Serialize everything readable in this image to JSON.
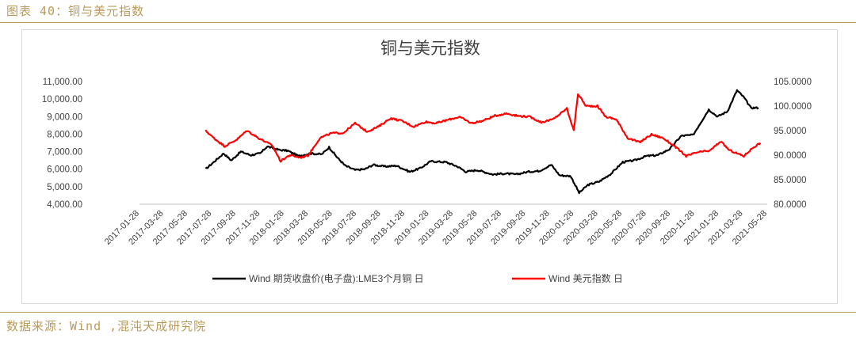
{
  "figure": {
    "caption": "图表 40：铜与美元指数",
    "source": "数据来源：Wind ,混沌天成研究院"
  },
  "chart_data": {
    "type": "line",
    "title": "铜与美元指数",
    "xlabel": "",
    "ylabel": "",
    "x_ticks": [
      "2017-01-28",
      "2017-03-28",
      "2017-05-28",
      "2017-07-28",
      "2017-09-28",
      "2017-11-28",
      "2018-01-28",
      "2018-03-28",
      "2018-05-28",
      "2018-07-28",
      "2018-09-28",
      "2018-11-28",
      "2019-01-28",
      "2019-03-28",
      "2019-05-28",
      "2019-07-28",
      "2019-09-28",
      "2019-11-28",
      "2020-01-28",
      "2020-03-28",
      "2020-05-28",
      "2020-07-28",
      "2020-09-28",
      "2020-11-28",
      "2021-01-28",
      "2021-03-28",
      "2021-05-28"
    ],
    "y_left": {
      "range": [
        4000,
        11000
      ],
      "ticks": [
        "4,000.00",
        "5,000.00",
        "6,000.00",
        "7,000.00",
        "8,000.00",
        "9,000.00",
        "10,000.00",
        "11,000.00"
      ]
    },
    "y_right": {
      "range": [
        80,
        105
      ],
      "ticks": [
        "80.0000",
        "85.0000",
        "90.0000",
        "95.0000",
        "100.0000",
        "105.0000"
      ]
    },
    "grid": false,
    "legend_position": "bottom",
    "series": [
      {
        "name": "Wind 期货收盘价(电子盘):LME3个月铜 日",
        "axis": "left",
        "color": "#000000",
        "points": [
          [
            "2017-07-20",
            6000
          ],
          [
            "2017-08-10",
            6400
          ],
          [
            "2017-09-05",
            6900
          ],
          [
            "2017-09-25",
            6500
          ],
          [
            "2017-10-20",
            7000
          ],
          [
            "2017-11-15",
            6800
          ],
          [
            "2017-12-10",
            6900
          ],
          [
            "2017-12-28",
            7300
          ],
          [
            "2018-01-28",
            7100
          ],
          [
            "2018-02-20",
            7050
          ],
          [
            "2018-03-20",
            6750
          ],
          [
            "2018-04-20",
            6900
          ],
          [
            "2018-05-20",
            6850
          ],
          [
            "2018-06-08",
            7250
          ],
          [
            "2018-06-28",
            6700
          ],
          [
            "2018-07-20",
            6200
          ],
          [
            "2018-08-15",
            5950
          ],
          [
            "2018-09-10",
            6000
          ],
          [
            "2018-10-01",
            6250
          ],
          [
            "2018-11-01",
            6150
          ],
          [
            "2018-12-01",
            6200
          ],
          [
            "2019-01-05",
            5850
          ],
          [
            "2019-02-01",
            6050
          ],
          [
            "2019-03-01",
            6450
          ],
          [
            "2019-04-10",
            6400
          ],
          [
            "2019-05-10",
            6150
          ],
          [
            "2019-06-01",
            5850
          ],
          [
            "2019-07-01",
            5950
          ],
          [
            "2019-08-10",
            5700
          ],
          [
            "2019-09-10",
            5750
          ],
          [
            "2019-10-10",
            5700
          ],
          [
            "2019-11-10",
            5850
          ],
          [
            "2019-12-10",
            5900
          ],
          [
            "2020-01-10",
            6250
          ],
          [
            "2020-02-01",
            5650
          ],
          [
            "2020-03-01",
            5600
          ],
          [
            "2020-03-23",
            4650
          ],
          [
            "2020-04-15",
            5100
          ],
          [
            "2020-05-15",
            5300
          ],
          [
            "2020-06-15",
            5750
          ],
          [
            "2020-07-15",
            6400
          ],
          [
            "2020-08-15",
            6500
          ],
          [
            "2020-09-15",
            6750
          ],
          [
            "2020-10-15",
            6800
          ],
          [
            "2020-11-15",
            7150
          ],
          [
            "2020-12-15",
            7900
          ],
          [
            "2021-01-15",
            7950
          ],
          [
            "2021-02-25",
            9400
          ],
          [
            "2021-03-20",
            9000
          ],
          [
            "2021-04-15",
            9300
          ],
          [
            "2021-05-10",
            10500
          ],
          [
            "2021-05-28",
            10100
          ],
          [
            "2021-06-15",
            9500
          ],
          [
            "2021-07-05",
            9500
          ]
        ]
      },
      {
        "name": "Wind 美元指数 日",
        "axis": "right",
        "color": "#ff0000",
        "points": [
          [
            "2017-07-20",
            95.0
          ],
          [
            "2017-08-10",
            93.5
          ],
          [
            "2017-09-08",
            91.8
          ],
          [
            "2017-10-10",
            93.2
          ],
          [
            "2017-11-05",
            95.0
          ],
          [
            "2017-12-05",
            93.5
          ],
          [
            "2018-01-10",
            92.0
          ],
          [
            "2018-02-01",
            88.8
          ],
          [
            "2018-02-25",
            90.0
          ],
          [
            "2018-03-25",
            89.5
          ],
          [
            "2018-04-15",
            90.0
          ],
          [
            "2018-05-15",
            93.5
          ],
          [
            "2018-06-15",
            94.5
          ],
          [
            "2018-07-15",
            94.5
          ],
          [
            "2018-08-15",
            96.5
          ],
          [
            "2018-09-15",
            94.8
          ],
          [
            "2018-10-15",
            95.8
          ],
          [
            "2018-11-15",
            97.5
          ],
          [
            "2018-12-15",
            97.0
          ],
          [
            "2019-01-15",
            95.8
          ],
          [
            "2019-02-15",
            96.8
          ],
          [
            "2019-03-15",
            96.5
          ],
          [
            "2019-04-15",
            97.2
          ],
          [
            "2019-05-15",
            97.8
          ],
          [
            "2019-06-15",
            96.5
          ],
          [
            "2019-07-15",
            97.0
          ],
          [
            "2019-08-15",
            98.0
          ],
          [
            "2019-09-15",
            98.5
          ],
          [
            "2019-10-15",
            98.0
          ],
          [
            "2019-11-15",
            97.8
          ],
          [
            "2019-12-15",
            96.7
          ],
          [
            "2020-01-15",
            97.3
          ],
          [
            "2020-02-20",
            99.5
          ],
          [
            "2020-03-09",
            95.0
          ],
          [
            "2020-03-20",
            102.5
          ],
          [
            "2020-04-10",
            100.0
          ],
          [
            "2020-05-10",
            100.0
          ],
          [
            "2020-06-01",
            97.8
          ],
          [
            "2020-06-28",
            97.3
          ],
          [
            "2020-07-28",
            93.5
          ],
          [
            "2020-08-28",
            92.6
          ],
          [
            "2020-09-28",
            94.2
          ],
          [
            "2020-10-28",
            93.5
          ],
          [
            "2020-11-28",
            91.8
          ],
          [
            "2020-12-28",
            89.8
          ],
          [
            "2021-01-28",
            90.6
          ],
          [
            "2021-02-28",
            90.9
          ],
          [
            "2021-03-28",
            92.8
          ],
          [
            "2021-04-20",
            91.0
          ],
          [
            "2021-05-15",
            90.2
          ],
          [
            "2021-05-28",
            89.8
          ],
          [
            "2021-06-20",
            91.5
          ],
          [
            "2021-07-10",
            92.5
          ]
        ]
      }
    ]
  }
}
